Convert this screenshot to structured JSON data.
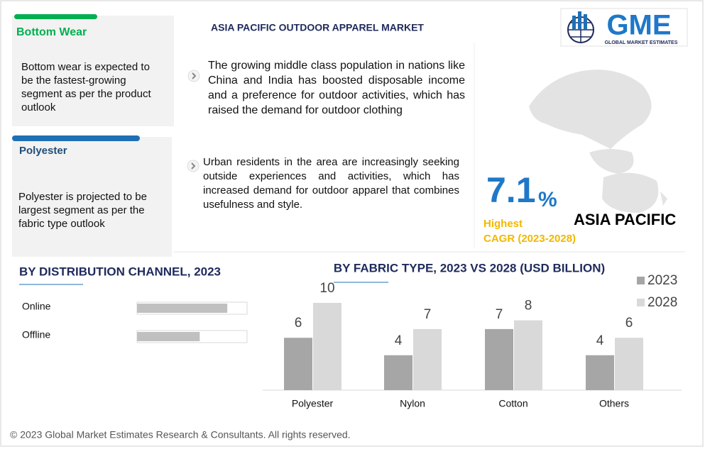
{
  "header": {
    "title": "ASIA PACIFIC OUTDOOR APPAREL MARKET"
  },
  "logo": {
    "text": "GME",
    "subtext": "GLOBAL MARKET ESTIMATES"
  },
  "highlights": [
    {
      "title": "Bottom Wear",
      "text": "Bottom wear is expected to be the fastest-growing segment as per the product outlook"
    },
    {
      "title": "Polyester",
      "text": "Polyester is projected to be largest segment as per the fabric type outlook"
    }
  ],
  "bullets": [
    "The growing middle class population in nations like China and India has boosted disposable income and a preference for outdoor activities, which has raised the demand for outdoor clothing",
    "Urban residents in the area are increasingly seeking outside experiences and activities, which has increased demand for outdoor apparel that combines usefulness and style."
  ],
  "cagr": {
    "value": 7.1,
    "unit": "%",
    "label": "Highest",
    "period": "CAGR (2023-2028)",
    "region": "ASIA PACIFIC"
  },
  "distribution": {
    "title": "BY DISTRIBUTION CHANNEL, 2023",
    "categories": [
      "Online",
      "Offline"
    ],
    "values": [
      82,
      57
    ],
    "xlim": [
      0,
      100
    ],
    "color": "#c0c0c0"
  },
  "chart_data": {
    "type": "bar",
    "title": "BY FABRIC TYPE, 2023 VS 2028 (USD BILLION)",
    "categories": [
      "Polyester",
      "Nylon",
      "Cotton",
      "Others"
    ],
    "series": [
      {
        "name": "2023",
        "color": "#a6a6a6",
        "values": [
          6,
          4,
          7,
          4
        ]
      },
      {
        "name": "2028",
        "color": "#d9d9d9",
        "values": [
          10,
          7,
          8,
          6
        ]
      }
    ],
    "ylim": [
      0,
      10
    ]
  },
  "footer": {
    "copyright": "© 2023 Global Market Estimates Research & Consultants. All rights reserved."
  }
}
